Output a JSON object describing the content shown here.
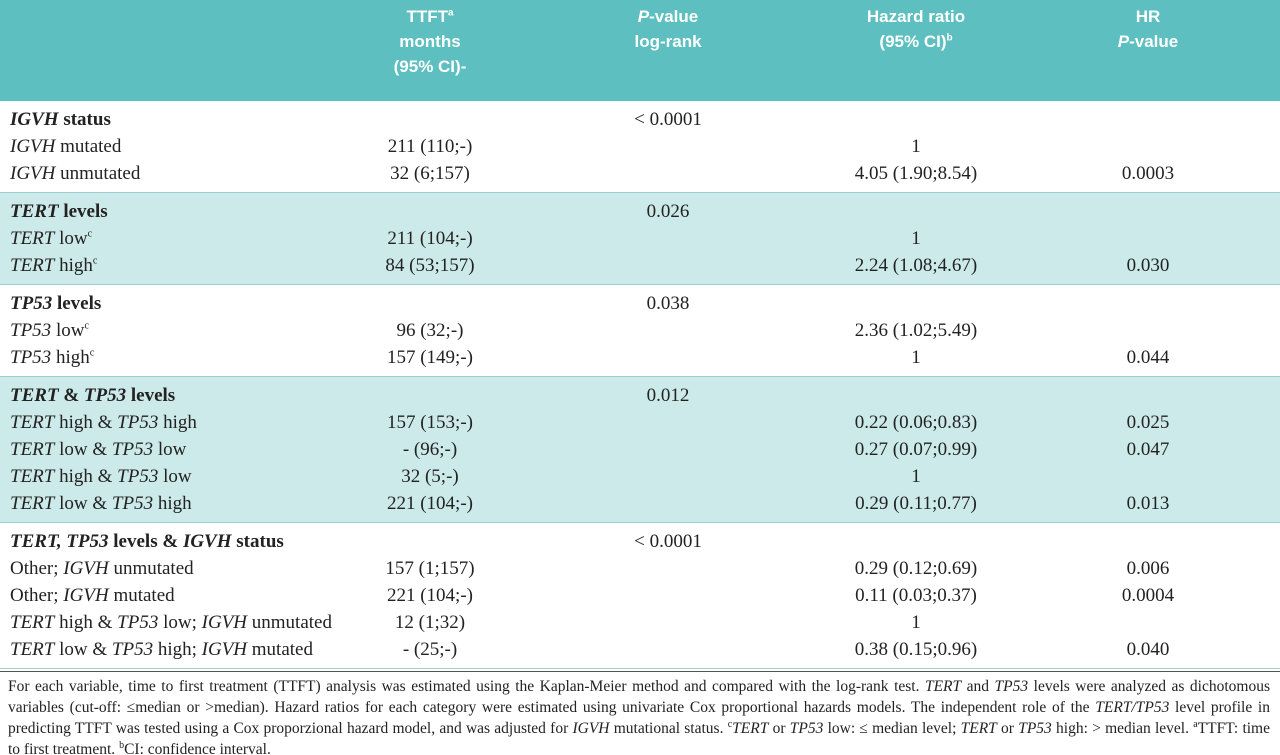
{
  "header": {
    "columns": [
      [
        [
          {
            "t": "TTFT"
          },
          {
            "sup": "a"
          }
        ],
        [
          {
            "t": "months"
          }
        ],
        [
          {
            "t": "(95% CI)-"
          }
        ]
      ],
      [
        [
          {
            "i": "P"
          },
          {
            "t": "-value"
          }
        ],
        [
          {
            "t": "log-rank"
          }
        ]
      ],
      [
        [
          {
            "t": "Hazard ratio"
          }
        ],
        [
          {
            "t": "(95% CI)"
          },
          {
            "sup": "b"
          }
        ]
      ],
      [
        [
          {
            "t": "HR"
          }
        ],
        [
          {
            "i": "P"
          },
          {
            "t": "-value"
          }
        ]
      ]
    ]
  },
  "groups": [
    {
      "shaded": false,
      "title": [
        {
          "i": "IGVH"
        },
        {
          "t": " status"
        }
      ],
      "p_value": "< 0.0001",
      "rows": [
        {
          "label": [
            {
              "i": "IGVH"
            },
            {
              "t": " mutated"
            }
          ],
          "ttft": "211 (110;-)",
          "hr": "1",
          "hr_p": null
        },
        {
          "label": [
            {
              "i": "IGVH"
            },
            {
              "t": " unmutated"
            }
          ],
          "ttft": "32 (6;157)",
          "hr": "4.05 (1.90;8.54)",
          "hr_p": "0.0003"
        }
      ]
    },
    {
      "shaded": true,
      "title": [
        {
          "i": "TERT"
        },
        {
          "t": " levels"
        }
      ],
      "p_value": "0.026",
      "rows": [
        {
          "label": [
            {
              "i": "TERT"
            },
            {
              "t": " low"
            },
            {
              "sup": "c"
            }
          ],
          "ttft": "211 (104;-)",
          "hr": "1",
          "hr_p": null
        },
        {
          "label": [
            {
              "i": "TERT"
            },
            {
              "t": " high"
            },
            {
              "sup": "c"
            }
          ],
          "ttft": "84 (53;157)",
          "hr": "2.24 (1.08;4.67)",
          "hr_p": "0.030"
        }
      ]
    },
    {
      "shaded": false,
      "title": [
        {
          "i": "TP53"
        },
        {
          "t": " levels"
        }
      ],
      "p_value": "0.038",
      "rows": [
        {
          "label": [
            {
              "i": "TP53"
            },
            {
              "t": " low"
            },
            {
              "sup": "c"
            }
          ],
          "ttft": "96 (32;-)",
          "hr": "2.36 (1.02;5.49)",
          "hr_p": null
        },
        {
          "label": [
            {
              "i": "TP53"
            },
            {
              "t": " high"
            },
            {
              "sup": "c"
            }
          ],
          "ttft": "157 (149;-)",
          "hr": "1",
          "hr_p": "0.044"
        }
      ]
    },
    {
      "shaded": true,
      "title": [
        {
          "i": "TERT"
        },
        {
          "t": " & "
        },
        {
          "i": "TP53"
        },
        {
          "t": " levels"
        }
      ],
      "p_value": "0.012",
      "rows": [
        {
          "label": [
            {
              "i": "TERT"
            },
            {
              "t": " high & "
            },
            {
              "i": "TP53"
            },
            {
              "t": " high"
            }
          ],
          "ttft": "157 (153;-)",
          "hr": "0.22 (0.06;0.83)",
          "hr_p": "0.025"
        },
        {
          "label": [
            {
              "i": "TERT"
            },
            {
              "t": " low & "
            },
            {
              "i": "TP53"
            },
            {
              "t": " low"
            }
          ],
          "ttft": "- (96;-)",
          "hr": "0.27 (0.07;0.99)",
          "hr_p": "0.047"
        },
        {
          "label": [
            {
              "i": "TERT"
            },
            {
              "t": " high & "
            },
            {
              "i": "TP53"
            },
            {
              "t": " low"
            }
          ],
          "ttft": "32 (5;-)",
          "hr": "1",
          "hr_p": null
        },
        {
          "label": [
            {
              "i": "TERT"
            },
            {
              "t": " low & "
            },
            {
              "i": "TP53"
            },
            {
              "t": " high"
            }
          ],
          "ttft": "221 (104;-)",
          "hr": "0.29 (0.11;0.77)",
          "hr_p": "0.013"
        }
      ]
    },
    {
      "shaded": false,
      "title": [
        {
          "i": "TERT, TP53"
        },
        {
          "t": " levels & "
        },
        {
          "i": "IGVH"
        },
        {
          "t": " status"
        }
      ],
      "p_value": "< 0.0001",
      "rows": [
        {
          "label": [
            {
              "t": "Other; "
            },
            {
              "i": "IGVH"
            },
            {
              "t": " unmutated"
            }
          ],
          "ttft": "157 (1;157)",
          "hr": "0.29 (0.12;0.69)",
          "hr_p": "0.006"
        },
        {
          "label": [
            {
              "t": "Other; "
            },
            {
              "i": "IGVH"
            },
            {
              "t": " mutated"
            }
          ],
          "ttft": "221 (104;-)",
          "hr": "0.11 (0.03;0.37)",
          "hr_p": "0.0004"
        },
        {
          "label": [
            {
              "i": "TERT"
            },
            {
              "t": " high & "
            },
            {
              "i": "TP53"
            },
            {
              "t": " low; "
            },
            {
              "i": "IGVH"
            },
            {
              "t": " unmutated"
            }
          ],
          "ttft": "12 (1;32)",
          "hr": "1",
          "hr_p": null
        },
        {
          "label": [
            {
              "i": "TERT"
            },
            {
              "t": " low & "
            },
            {
              "i": "TP53"
            },
            {
              "t": " high; "
            },
            {
              "i": "IGVH"
            },
            {
              "t": " mutated"
            }
          ],
          "ttft": "- (25;-)",
          "hr": "0.38 (0.15;0.96)",
          "hr_p": "0.040"
        }
      ]
    }
  ],
  "footnote": [
    {
      "t": "For each variable, time to first treatment (TTFT) analysis was estimated using the Kaplan-Meier method and compared with the log-rank test. "
    },
    {
      "i": "TERT"
    },
    {
      "t": " and "
    },
    {
      "i": "TP53"
    },
    {
      "t": " levels were analyzed as dichotomous variables (cut-off: ≤median or >median). Hazard ratios for each category were estimated using univariate Cox proportional hazards models. The independent role of the "
    },
    {
      "i": "TERT/TP53"
    },
    {
      "t": " level profile in predicting TTFT was tested using a Cox proporzional hazard model, and was adjusted for "
    },
    {
      "i": "IGVH"
    },
    {
      "t": " mutational status. "
    },
    {
      "sup": "c"
    },
    {
      "i": "TERT"
    },
    {
      "t": " or "
    },
    {
      "i": "TP53"
    },
    {
      "t": " low: ≤ median level; "
    },
    {
      "i": "TERT"
    },
    {
      "t": " or "
    },
    {
      "i": "TP53"
    },
    {
      "t": " high: > median level. "
    },
    {
      "sup": "a"
    },
    {
      "t": "TTFT: time to first treatment. "
    },
    {
      "sup": "b"
    },
    {
      "t": "CI: confidence interval."
    }
  ]
}
